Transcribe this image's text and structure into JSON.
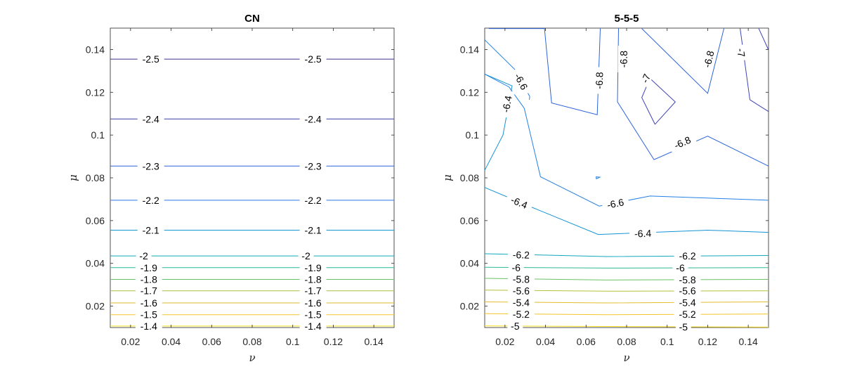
{
  "chart_data": [
    {
      "type": "contour",
      "title": "CN",
      "xlabel": "ν",
      "ylabel": "μ",
      "xlim": [
        0.01,
        0.15
      ],
      "ylim": [
        0.01,
        0.15
      ],
      "xticks": [
        "0.02",
        "0.04",
        "0.06",
        "0.08",
        "0.1",
        "0.12",
        "0.14"
      ],
      "yticks": [
        "0.02",
        "0.04",
        "0.06",
        "0.08",
        "0.1",
        "0.12",
        "0.14"
      ],
      "contours": [
        {
          "level": "-2.5",
          "color": "#3f2f8f",
          "points": [
            [
              0.01,
              0.1355
            ],
            [
              0.15,
              0.1355
            ]
          ],
          "labels": [
            [
              0.03,
              0.1355
            ],
            [
              0.11,
              0.1355
            ]
          ]
        },
        {
          "level": "-2.4",
          "color": "#3b3fa8",
          "points": [
            [
              0.01,
              0.1075
            ],
            [
              0.15,
              0.1075
            ]
          ],
          "labels": [
            [
              0.03,
              0.1075
            ],
            [
              0.11,
              0.1075
            ]
          ]
        },
        {
          "level": "-2.3",
          "color": "#2f62dc",
          "points": [
            [
              0.01,
              0.0855
            ],
            [
              0.15,
              0.0855
            ]
          ],
          "labels": [
            [
              0.03,
              0.0855
            ],
            [
              0.11,
              0.0855
            ]
          ]
        },
        {
          "level": "-2.2",
          "color": "#2b78e6",
          "points": [
            [
              0.01,
              0.0695
            ],
            [
              0.15,
              0.0695
            ]
          ],
          "labels": [
            [
              0.03,
              0.0695
            ],
            [
              0.11,
              0.0695
            ]
          ]
        },
        {
          "level": "-2.1",
          "color": "#1596d0",
          "points": [
            [
              0.01,
              0.0555
            ],
            [
              0.15,
              0.0555
            ]
          ],
          "labels": [
            [
              0.03,
              0.0555
            ],
            [
              0.11,
              0.0555
            ]
          ]
        },
        {
          "level": "-2",
          "color": "#0eaab8",
          "points": [
            [
              0.01,
              0.0435
            ],
            [
              0.15,
              0.0435
            ]
          ],
          "labels": [
            [
              0.0265,
              0.0435
            ],
            [
              0.1065,
              0.0435
            ]
          ]
        },
        {
          "level": "-1.9",
          "color": "#27b896",
          "points": [
            [
              0.01,
              0.038
            ],
            [
              0.15,
              0.038
            ]
          ],
          "labels": [
            [
              0.029,
              0.038
            ],
            [
              0.11,
              0.038
            ]
          ]
        },
        {
          "level": "-1.8",
          "color": "#63c06a",
          "points": [
            [
              0.01,
              0.0325
            ],
            [
              0.15,
              0.0325
            ]
          ],
          "labels": [
            [
              0.029,
              0.0325
            ],
            [
              0.11,
              0.0325
            ]
          ]
        },
        {
          "level": "-1.7",
          "color": "#a5be40",
          "points": [
            [
              0.01,
              0.0272
            ],
            [
              0.15,
              0.0272
            ]
          ],
          "labels": [
            [
              0.029,
              0.0272
            ],
            [
              0.11,
              0.0272
            ]
          ]
        },
        {
          "level": "-1.6",
          "color": "#d9ba2c",
          "points": [
            [
              0.01,
              0.0215
            ],
            [
              0.15,
              0.0215
            ]
          ],
          "labels": [
            [
              0.029,
              0.0215
            ],
            [
              0.11,
              0.0215
            ]
          ]
        },
        {
          "level": "-1.5",
          "color": "#f4c42a",
          "points": [
            [
              0.01,
              0.016
            ],
            [
              0.15,
              0.016
            ]
          ],
          "labels": [
            [
              0.029,
              0.016
            ],
            [
              0.11,
              0.016
            ]
          ]
        },
        {
          "level": "-1.4",
          "color": "#f8e022",
          "points": [
            [
              0.01,
              0.0107
            ],
            [
              0.15,
              0.0107
            ]
          ],
          "labels": [
            [
              0.029,
              0.0107
            ],
            [
              0.11,
              0.0107
            ]
          ]
        }
      ]
    },
    {
      "type": "contour",
      "title": "5-5-5",
      "xlabel": "ν",
      "ylabel": "μ",
      "xlim": [
        0.01,
        0.15
      ],
      "ylim": [
        0.01,
        0.15
      ],
      "xticks": [
        "0.02",
        "0.04",
        "0.06",
        "0.08",
        "0.1",
        "0.12",
        "0.14"
      ],
      "yticks": [
        "0.02",
        "0.04",
        "0.06",
        "0.08",
        "0.1",
        "0.12",
        "0.14"
      ],
      "contours": [
        {
          "level": "-5",
          "color": "#f8e022",
          "points": [
            [
              0.01,
              0.0108
            ],
            [
              0.07,
              0.0105
            ],
            [
              0.15,
              0.0102
            ]
          ],
          "labels": [
            [
              0.025,
              0.0107
            ],
            [
              0.108,
              0.0103
            ]
          ]
        },
        {
          "level": "-5.2",
          "color": "#f4c42a",
          "points": [
            [
              0.01,
              0.0165
            ],
            [
              0.07,
              0.016
            ],
            [
              0.15,
              0.0163
            ]
          ],
          "labels": [
            [
              0.028,
              0.0162
            ],
            [
              0.11,
              0.0162
            ]
          ]
        },
        {
          "level": "-5.4",
          "color": "#e4bc2e",
          "points": [
            [
              0.01,
              0.022
            ],
            [
              0.07,
              0.0215
            ],
            [
              0.15,
              0.022
            ]
          ],
          "labels": [
            [
              0.028,
              0.0217
            ],
            [
              0.11,
              0.0217
            ]
          ]
        },
        {
          "level": "-5.6",
          "color": "#b6bf3c",
          "points": [
            [
              0.01,
              0.0275
            ],
            [
              0.07,
              0.027
            ],
            [
              0.15,
              0.0272
            ]
          ],
          "labels": [
            [
              0.028,
              0.0272
            ],
            [
              0.11,
              0.0272
            ]
          ]
        },
        {
          "level": "-5.8",
          "color": "#6cc164",
          "points": [
            [
              0.01,
              0.033
            ],
            [
              0.07,
              0.0322
            ],
            [
              0.15,
              0.0325
            ]
          ],
          "labels": [
            [
              0.028,
              0.0326
            ],
            [
              0.11,
              0.0323
            ]
          ]
        },
        {
          "level": "-6",
          "color": "#30b894",
          "points": [
            [
              0.01,
              0.0382
            ],
            [
              0.07,
              0.0378
            ],
            [
              0.15,
              0.038
            ]
          ],
          "labels": [
            [
              0.0255,
              0.038
            ],
            [
              0.1065,
              0.0379
            ]
          ]
        },
        {
          "level": "-6.2",
          "color": "#12a8bc",
          "points": [
            [
              0.01,
              0.0445
            ],
            [
              0.07,
              0.0432
            ],
            [
              0.15,
              0.0437
            ]
          ],
          "labels": [
            [
              0.028,
              0.044
            ],
            [
              0.11,
              0.0435
            ]
          ]
        },
        {
          "level": "-6.4",
          "color": "#1593d3",
          "points": [
            [
              0.01,
              0.0755
            ],
            [
              0.03,
              0.0675
            ],
            [
              0.066,
              0.0535
            ],
            [
              0.12,
              0.0555
            ],
            [
              0.15,
              0.0545
            ]
          ],
          "labels": [
            [
              0.027,
              0.0685
            ],
            [
              0.088,
              0.054
            ]
          ]
        },
        {
          "level": "-6.4",
          "color": "#1593d3",
          "points": [
            [
              0.01,
              0.0835
            ],
            [
              0.019,
              0.1
            ],
            [
              0.0235,
              0.123
            ],
            [
              0.01,
              0.1285
            ]
          ],
          "labels": [
            [
              0.021,
              0.1145
            ]
          ]
        },
        {
          "level": "-6.6",
          "color": "#2381e4",
          "points": [
            [
              0.01,
              0.1285
            ],
            [
              0.022,
              0.1225
            ],
            [
              0.0295,
              0.1125
            ],
            [
              0.0375,
              0.0805
            ],
            [
              0.0665,
              0.0668
            ],
            [
              0.0915,
              0.0715
            ],
            [
              0.15,
              0.0695
            ]
          ],
          "labels": [
            [
              0.0745,
              0.068
            ]
          ]
        },
        {
          "level": "-6.6",
          "color": "#2381e4",
          "points": [
            [
              0.01,
              0.1445
            ],
            [
              0.025,
              0.1305
            ],
            [
              0.0322,
              0.118
            ],
            [
              0.032,
              0.1165
            ]
          ],
          "labels": [
            [
              0.028,
              0.125
            ]
          ]
        },
        {
          "level": "-6.6",
          "color": "#2381e4",
          "points": [
            [
              0.065,
              0.0795
            ],
            [
              0.0668,
              0.0803
            ],
            [
              0.065,
              0.0805
            ],
            [
              0.065,
              0.0795
            ]
          ],
          "labels": []
        },
        {
          "level": "-6.8",
          "color": "#2d63da",
          "points": [
            [
              0.012,
              0.1498
            ],
            [
              0.0395,
              0.1498
            ],
            [
              0.043,
              0.115
            ],
            [
              0.0655,
              0.1095
            ],
            [
              0.067,
              0.1498
            ]
          ],
          "labels": [
            [
              0.0665,
              0.1255
            ]
          ]
        },
        {
          "level": "-6.8",
          "color": "#2d63da",
          "points": [
            [
              0.076,
              0.1498
            ],
            [
              0.0755,
              0.1155
            ],
            [
              0.0935,
              0.0885
            ],
            [
              0.12,
              0.0995
            ],
            [
              0.15,
              0.0855
            ]
          ],
          "labels": [
            [
              0.0785,
              0.1355
            ],
            [
              0.1075,
              0.0965
            ]
          ]
        },
        {
          "level": "-6.8",
          "color": "#2d63da",
          "points": [
            [
              0.0875,
              0.1498
            ],
            [
              0.12,
              0.1195
            ],
            [
              0.128,
              0.1498
            ]
          ],
          "labels": [
            [
              0.1205,
              0.1355
            ]
          ]
        },
        {
          "level": "-7",
          "color": "#3f44b6",
          "points": [
            [
              0.094,
              0.105
            ],
            [
              0.0875,
              0.1175
            ],
            [
              0.0915,
              0.1265
            ],
            [
              0.104,
              0.1155
            ],
            [
              0.094,
              0.105
            ]
          ],
          "labels": [
            [
              0.0895,
              0.1265
            ]
          ]
        },
        {
          "level": "-7",
          "color": "#3f44b6",
          "points": [
            [
              0.136,
              0.1498
            ],
            [
              0.1408,
              0.1165
            ],
            [
              0.15,
              0.111
            ]
          ],
          "labels": [
            [
              0.1365,
              0.1385
            ]
          ]
        },
        {
          "level": "-7",
          "color": "#3f44b6",
          "points": [
            [
              0.1452,
              0.1498
            ],
            [
              0.15,
              0.1398
            ]
          ],
          "labels": []
        }
      ]
    }
  ]
}
